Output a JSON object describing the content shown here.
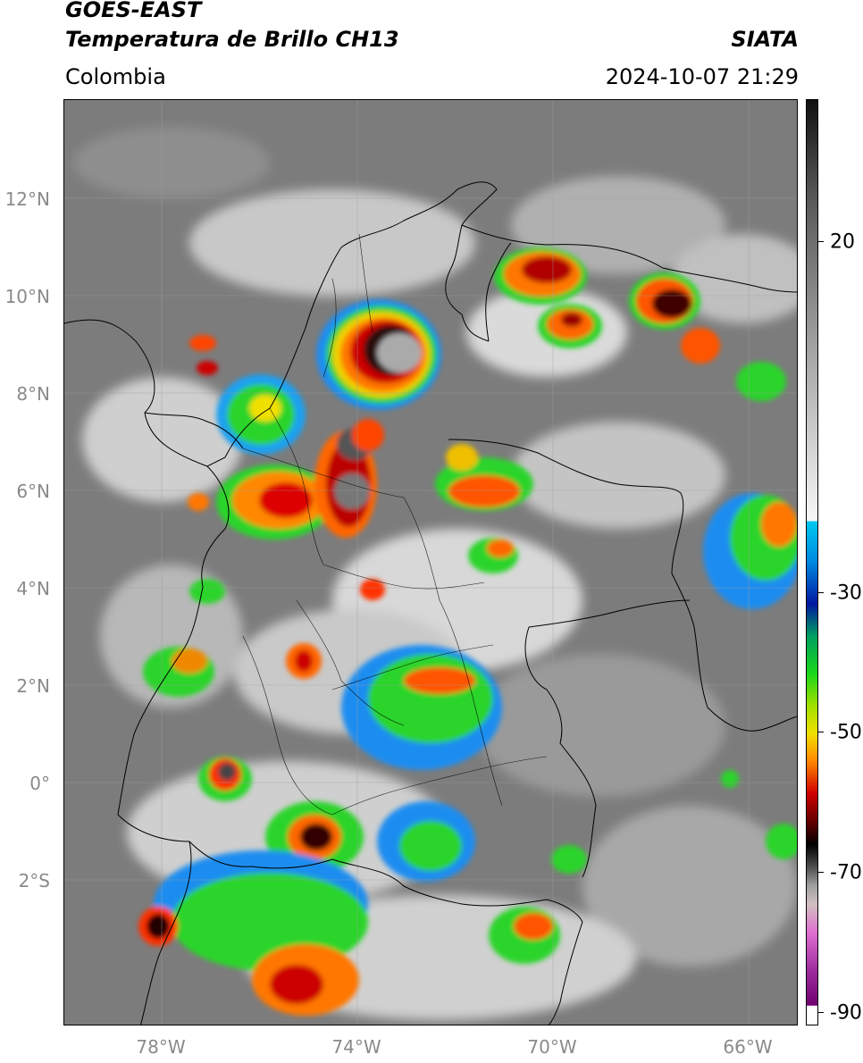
{
  "header": {
    "satellite": "GOES-EAST",
    "product": "Temperatura de Brillo CH13",
    "agency": "SIATA",
    "region": "Colombia",
    "timestamp": "2024-10-07 21:29"
  },
  "map": {
    "projection": "lat-lon",
    "lon_range": [
      -80,
      -65
    ],
    "lat_range": [
      -5,
      14
    ],
    "lat_ticks": [
      "12°N",
      "10°N",
      "8°N",
      "6°N",
      "4°N",
      "2°N",
      "0°",
      "2°S"
    ],
    "lon_ticks": [
      "78°W",
      "74°W",
      "70°W",
      "66°W"
    ],
    "gridlines": true,
    "features": [
      "country-borders",
      "department-borders",
      "coastline"
    ]
  },
  "colorbar": {
    "label_values": [
      "20",
      "-30",
      "-50",
      "-70",
      "-90"
    ],
    "range": [
      -92,
      40
    ],
    "colors": {
      "warm_gray_top": "#101010",
      "warm_gray_mid": "#808080",
      "warm_gray_light": "#f5f5f5",
      "cyan": "#00c8f0",
      "blue": "#0018a0",
      "green": "#1ad61a",
      "yellow": "#f0e000",
      "orange": "#ff7f00",
      "red": "#d00000",
      "black": "#000000",
      "magenta": "#d040c0",
      "purple": "#800080"
    }
  }
}
